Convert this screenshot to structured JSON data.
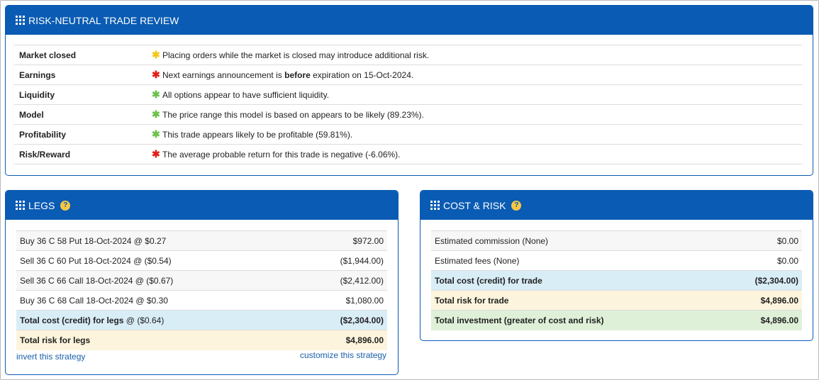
{
  "review": {
    "title": "RISK-NEUTRAL TRADE REVIEW",
    "rows": [
      {
        "label": "Market closed",
        "status": "yellow",
        "text_before": "Placing orders while the market is closed may introduce additional risk.",
        "bold": "",
        "text_after": ""
      },
      {
        "label": "Earnings",
        "status": "red",
        "text_before": "Next earnings announcement is ",
        "bold": "before",
        "text_after": " expiration on 15-Oct-2024."
      },
      {
        "label": "Liquidity",
        "status": "green",
        "text_before": "All options appear to have sufficient liquidity.",
        "bold": "",
        "text_after": ""
      },
      {
        "label": "Model",
        "status": "green",
        "text_before": "The price range this model is based on appears to be likely (89.23%).",
        "bold": "",
        "text_after": ""
      },
      {
        "label": "Profitability",
        "status": "green",
        "text_before": "This trade appears likely to be profitable (59.81%).",
        "bold": "",
        "text_after": ""
      },
      {
        "label": "Risk/Reward",
        "status": "red",
        "text_before": "The average probable return for this trade is negative (-6.06%).",
        "bold": "",
        "text_after": ""
      }
    ]
  },
  "legs": {
    "title": "LEGS",
    "help": "?",
    "rows": [
      {
        "desc": "Buy 36 C 58 Put 18-Oct-2024 @ $0.27",
        "amount": "$972.00"
      },
      {
        "desc": "Sell 36 C 60 Put 18-Oct-2024 @ ($0.54)",
        "amount": "($1,944.00)"
      },
      {
        "desc": "Sell 36 C 66 Call 18-Oct-2024 @ ($0.67)",
        "amount": "($2,412.00)"
      },
      {
        "desc": "Buy 36 C 68 Call 18-Oct-2024 @ $0.30",
        "amount": "$1,080.00"
      }
    ],
    "total_cost_label": "Total cost (credit) for legs",
    "total_cost_suffix": " @ ($0.64)",
    "total_cost_amount": "($2,304.00)",
    "total_risk_label": "Total risk for legs",
    "total_risk_amount": "$4,896.00",
    "invert_link": "invert this strategy",
    "customize_link": "customize this strategy"
  },
  "cost_risk": {
    "title": "COST & RISK",
    "help": "?",
    "rows": [
      {
        "label": "Estimated commission (None)",
        "amount": "$0.00"
      },
      {
        "label": "Estimated fees (None)",
        "amount": "$0.00"
      }
    ],
    "total_cost_label": "Total cost (credit) for trade",
    "total_cost_amount": "($2,304.00)",
    "total_risk_label": "Total risk for trade",
    "total_risk_amount": "$4,896.00",
    "total_investment_label": "Total investment (greater of cost and risk)",
    "total_investment_amount": "$4,896.00"
  },
  "colors": {
    "header_blue": "#0a5bb3",
    "status_yellow": "#f5c518",
    "status_red": "#e0201b",
    "status_green": "#6cc24a"
  }
}
